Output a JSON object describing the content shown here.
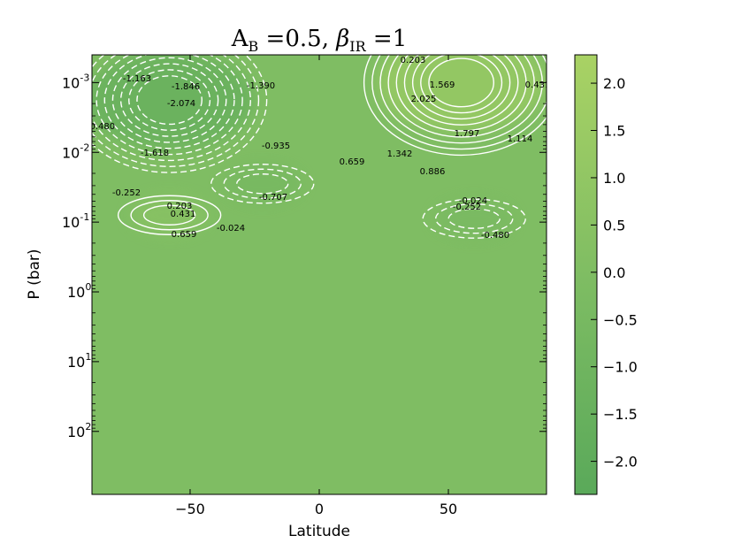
{
  "chart_data": {
    "type": "heatmap",
    "title": "A_B = 0.5, β_IR = 1",
    "title_parts": {
      "a": "A",
      "a_sub": "B",
      "a_val": " =0.5, ",
      "beta": "β",
      "beta_sub": "IR",
      "beta_val": " =1"
    },
    "xlabel": "Latitude",
    "ylabel": "P (bar)",
    "xlim": [
      -88,
      88
    ],
    "ylim_bar": [
      0.0004,
      800
    ],
    "y_scale": "log",
    "y_inverted": true,
    "x_ticks": [
      {
        "value": -50,
        "label": "−50"
      },
      {
        "value": 0,
        "label": "0"
      },
      {
        "value": 50,
        "label": "50"
      }
    ],
    "y_ticks": [
      {
        "exp": -3,
        "base": "10",
        "sup": "-3"
      },
      {
        "exp": -2,
        "base": "10",
        "sup": "-2"
      },
      {
        "exp": -1,
        "base": "10",
        "sup": "-1"
      },
      {
        "exp": 0,
        "base": "10",
        "sup": "0"
      },
      {
        "exp": 1,
        "base": "10",
        "sup": "1"
      },
      {
        "exp": 2,
        "base": "10",
        "sup": "2"
      }
    ],
    "colorbar": {
      "range": [
        -2.35,
        2.3
      ],
      "ticks": [
        {
          "value": 2.0,
          "label": "2.0"
        },
        {
          "value": 1.5,
          "label": "1.5"
        },
        {
          "value": 1.0,
          "label": "1.0"
        },
        {
          "value": 0.5,
          "label": "0.5"
        },
        {
          "value": 0.0,
          "label": "0.0"
        },
        {
          "value": -0.5,
          "label": "−0.5"
        },
        {
          "value": -1.0,
          "label": "−1.0"
        },
        {
          "value": -1.5,
          "label": "−1.5"
        },
        {
          "value": -2.0,
          "label": "−2.0"
        }
      ],
      "color_low": "#5aa95a",
      "color_mid": "#7fbd63",
      "color_high": "#a9d264"
    },
    "background_color": "#7fbd63",
    "contour_color": "#ffffff",
    "contour_levels_labeled": [
      0.203,
      1.569,
      2.025,
      1.797,
      1.342,
      0.886,
      0.659,
      1.114,
      0.431,
      -1.163,
      -1.846,
      -2.074,
      -1.39,
      -0.48,
      -1.618,
      -0.935,
      -0.252,
      -0.707,
      0.203,
      0.431,
      0.659,
      -0.024,
      -0.024,
      -0.252,
      -0.48
    ],
    "features": [
      {
        "kind": "maximum",
        "lat": 55,
        "logp": -3.0,
        "value": 2.1
      },
      {
        "kind": "minimum",
        "lat": -58,
        "logp": -2.75,
        "value": -2.2
      },
      {
        "kind": "maximum",
        "lat": -58,
        "logp": -1.1,
        "value": 0.75
      },
      {
        "kind": "minimum",
        "lat": -22,
        "logp": -1.55,
        "value": -0.8
      },
      {
        "kind": "minimum",
        "lat": 60,
        "logp": -1.05,
        "value": -0.55
      }
    ]
  }
}
